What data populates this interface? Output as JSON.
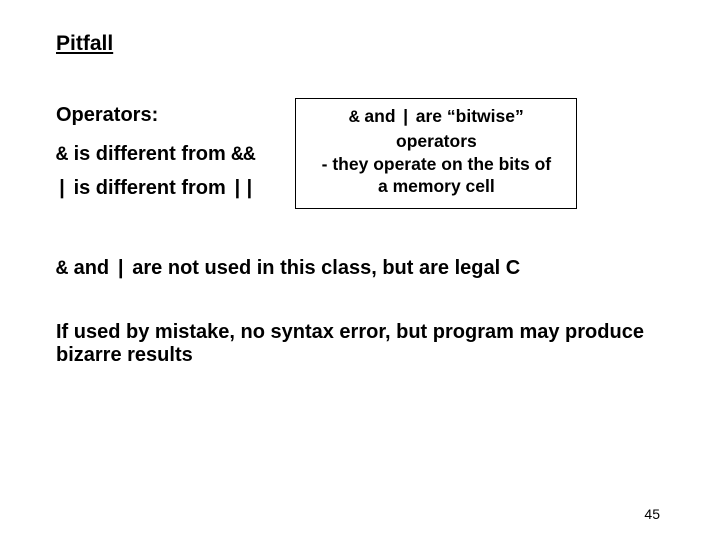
{
  "title": "Pitfall",
  "operators_label": "Operators:",
  "stmt1": {
    "op1": "&",
    "mid": " is different from ",
    "op2": "&&"
  },
  "stmt2": {
    "op1": "|",
    "mid": " is different from ",
    "op2": "||"
  },
  "box": {
    "line1a": "&",
    "line1b": " and ",
    "line1c": "|",
    "line1d": " are “bitwise” operators",
    "line2": "- they operate on the bits of",
    "line3": "a memory cell"
  },
  "body1": {
    "a": "&",
    "b": " and ",
    "c": "|",
    "d": " are not used in this class, but are legal C"
  },
  "body2": "If used by mistake, no syntax error, but program may produce bizarre results",
  "page": "45",
  "colors": {
    "text": "#000000",
    "bg": "#ffffff",
    "border": "#000000"
  }
}
